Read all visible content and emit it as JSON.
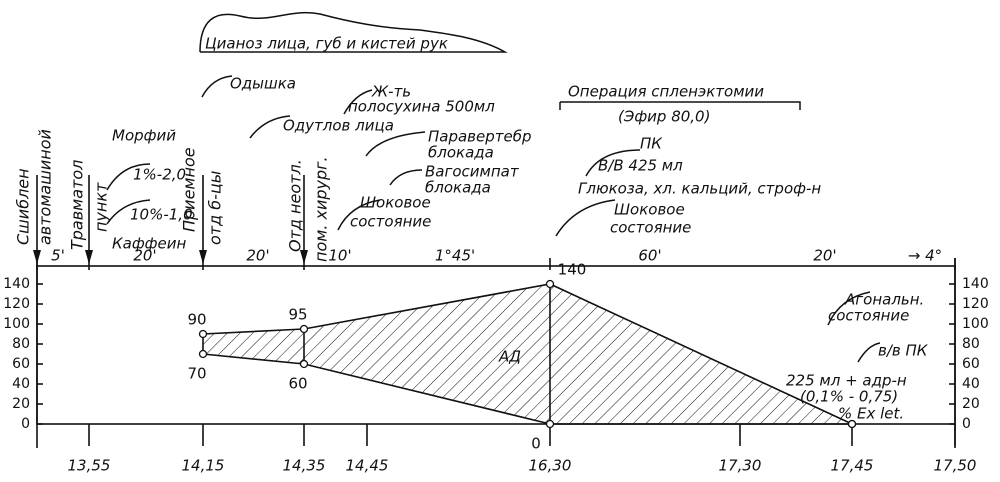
{
  "chart_data": {
    "type": "area",
    "categories": [
      "13,55",
      "14,15",
      "14,35",
      "14,45",
      "16,30",
      "17,30",
      "17,45",
      "17,50"
    ],
    "series": [
      {
        "values": [
          null,
          90,
          95,
          null,
          140,
          null,
          0,
          null
        ],
        "value_labels": [
          null,
          "90",
          "95",
          null,
          "140",
          null,
          null,
          null
        ]
      },
      {
        "values": [
          null,
          70,
          60,
          null,
          0,
          null,
          0,
          null
        ],
        "value_labels": [
          null,
          "70",
          "60",
          null,
          "0",
          null,
          null,
          null
        ]
      }
    ],
    "area_label": "АД",
    "ylim": [
      0,
      140
    ],
    "yticks": [
      0,
      20,
      40,
      60,
      80,
      100,
      120,
      140
    ],
    "top_scale": [
      "5'",
      "20'",
      "20'",
      "10'",
      "1°45'",
      "60'",
      "20'",
      "→ 4°"
    ],
    "events": [
      "Сшиблен",
      "автомашиной",
      "Травматол",
      "пункт",
      "Приемное",
      "отд б-цы",
      "Отд неотл.",
      "пом. хирург."
    ],
    "annotations": [
      "Цианоз лица, губ и кистей рук",
      "Одышка",
      "Ж-ть",
      "полосухина 500мл",
      "Операция спленэктомии",
      "(Эфир 80,0)",
      "Одутлов лица",
      "Паравертебр",
      "блокада",
      "Вагосимпат",
      "блокада",
      "ПК",
      "В/В 425 мл",
      "Глюкоза, хл. кальций, строф-н",
      "Шоковое",
      "состояние",
      "Шоковое",
      "состояние",
      "Морфий",
      "1%-2,0",
      "10%-1,0",
      "Каффеин",
      "Агональн.",
      "состояние",
      "в/в ПК",
      "225 мл + адр-н",
      "(0,1% - 0,75)",
      "% Ex let."
    ]
  }
}
